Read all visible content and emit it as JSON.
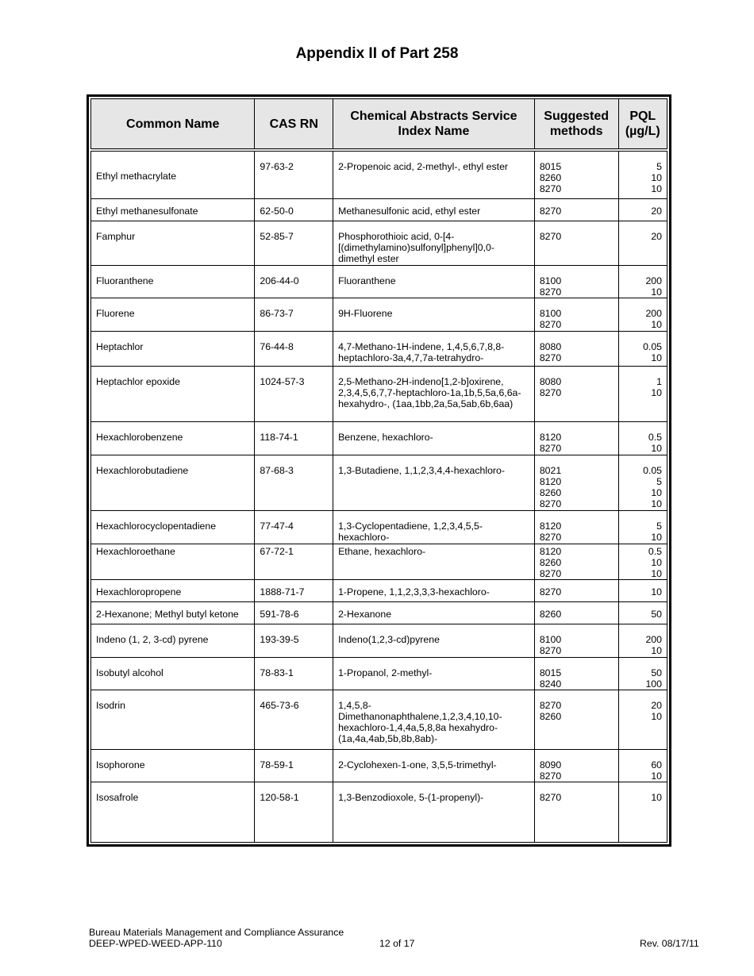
{
  "title": "Appendix II of Part 258",
  "table": {
    "headers": [
      "Common Name",
      "CAS RN",
      "Chemical Abstracts Service Index Name",
      "Suggested methods",
      "PQL (µg/L)"
    ],
    "rows": [
      {
        "name": "Ethyl methacrylate",
        "cas": "97-63-2",
        "index": "2-Propenoic acid, 2-methyl-, ethyl ester",
        "methods": "8015\n8260\n8270",
        "pql": "5\n10\n10"
      },
      {
        "name": "Ethyl methanesulfonate",
        "cas": "62-50-0",
        "index": "Methanesulfonic acid, ethyl ester",
        "methods": "8270",
        "pql": "20"
      },
      {
        "name": "Famphur",
        "cas": "52-85-7",
        "index": "Phosphorothioic acid, 0-[4-[(dimethylamino)sulfonyl]phenyl]0,0-dimethyl ester",
        "methods": "8270",
        "pql": "20"
      },
      {
        "name": "Fluoranthene",
        "cas": "206-44-0",
        "index": "Fluoranthene",
        "methods": "8100\n8270",
        "pql": "200\n10"
      },
      {
        "name": "Fluorene",
        "cas": "86-73-7",
        "index": "9H-Fluorene",
        "methods": "8100\n8270",
        "pql": "200\n10"
      },
      {
        "name": "Heptachlor",
        "cas": "76-44-8",
        "index": "4,7-Methano-1H-indene, 1,4,5,6,7,8,8-heptachloro-3a,4,7,7a-tetrahydro-",
        "methods": "8080\n8270",
        "pql": "0.05\n10"
      },
      {
        "name": "Heptachlor epoxide",
        "cas": "1024-57-3",
        "index": "2,5-Methano-2H-indeno[1,2-b]oxirene, 2,3,4,5,6,7,7-heptachloro-1a,1b,5,5a,6,6a-hexahydro-, (1aa,1bb,2a,5a,5ab,6b,6aa)",
        "methods": "8080\n8270",
        "pql": "1\n10"
      },
      {
        "name": "Hexachlorobenzene",
        "cas": "118-74-1",
        "index": "Benzene, hexachloro-",
        "methods": "8120\n8270",
        "pql": "0.5\n10"
      },
      {
        "name": "Hexachlorobutadiene",
        "cas": "87-68-3",
        "index": "1,3-Butadiene, 1,1,2,3,4,4-hexachloro-",
        "methods": "8021\n8120\n8260\n8270",
        "pql": "0.05\n5\n10\n10"
      },
      {
        "name": "Hexachlorocyclopentadiene",
        "cas": "77-47-4",
        "index": "1,3-Cyclopentadiene, 1,2,3,4,5,5-hexachloro-",
        "methods": "8120\n8270",
        "pql": "5\n10"
      },
      {
        "name": "Hexachloroethane",
        "cas": "67-72-1",
        "index": "Ethane, hexachloro-",
        "methods": "8120\n8260\n8270",
        "pql": "0.5\n10\n10"
      },
      {
        "name": "Hexachloropropene",
        "cas": "1888-71-7",
        "index": "1-Propene, 1,1,2,3,3,3-hexachloro-",
        "methods": "8270",
        "pql": "10"
      },
      {
        "name": "2-Hexanone; Methyl butyl ketone",
        "cas": "591-78-6",
        "index": "2-Hexanone",
        "methods": "8260",
        "pql": "50"
      },
      {
        "name": "Indeno (1, 2, 3-cd) pyrene",
        "cas": "193-39-5",
        "index": "Indeno(1,2,3-cd)pyrene",
        "methods": "8100\n8270",
        "pql": "200\n10"
      },
      {
        "name": "Isobutyl alcohol",
        "cas": "78-83-1",
        "index": "1-Propanol, 2-methyl-",
        "methods": "8015\n8240",
        "pql": "50\n100"
      },
      {
        "name": "Isodrin",
        "cas": "465-73-6",
        "index": "1,4,5,8-Dimethanonaphthalene,1,2,3,4,10,10-hexachloro-1,4,4a,5,8,8a hexahydro-(1a,4a,4ab,5b,8b,8ab)-",
        "methods": "8270\n8260",
        "pql": "20\n10"
      },
      {
        "name": "Isophorone",
        "cas": "78-59-1",
        "index": "2-Cyclohexen-1-one, 3,5,5-trimethyl-",
        "methods": "8090\n8270",
        "pql": "60\n10"
      },
      {
        "name": "Isosafrole",
        "cas": "120-58-1",
        "index": "1,3-Benzodioxole, 5-(1-propenyl)-",
        "methods": "8270",
        "pql": "10"
      }
    ]
  },
  "footer": {
    "line1": "Bureau Materials Management and Compliance Assurance",
    "line2": "DEEP-WPED-WEED-APP-110",
    "page": "12 of 17",
    "rev": "Rev. 08/17/11"
  }
}
